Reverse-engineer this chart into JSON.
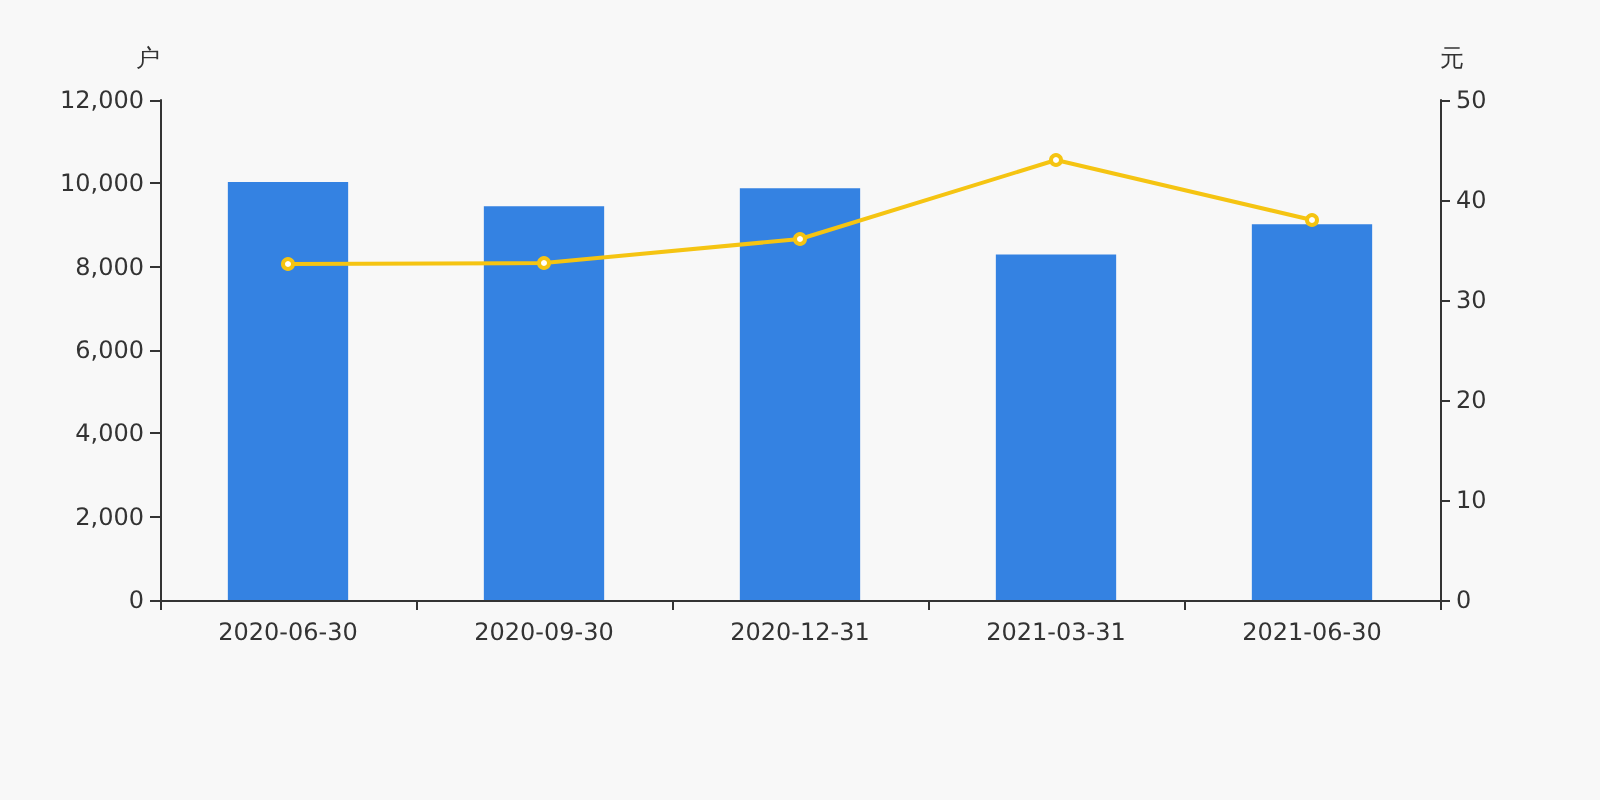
{
  "chart_data": {
    "type": "bar",
    "ylabel": "户",
    "y2label": "元",
    "categories": [
      "2020-06-30",
      "2020-09-30",
      "2020-12-31",
      "2021-03-31",
      "2021-06-30"
    ],
    "series": [
      {
        "color": "#3482e2",
        "values": [
          10030,
          9450,
          9880,
          8290,
          9020
        ]
      },
      {
        "type": "line",
        "axis": "y2",
        "color": "#f5c412",
        "marker": "circle",
        "values": [
          33.6,
          33.7,
          36.1,
          44.0,
          38.0
        ]
      }
    ],
    "ylim": [
      0,
      12000
    ],
    "yticks": [
      0,
      {
        "value": 2000,
        "label": "2,000"
      },
      {
        "value": 4000,
        "label": "4,000"
      },
      {
        "value": 6000,
        "label": "6,000"
      },
      {
        "value": 8000,
        "label": "8,000"
      },
      {
        "value": 10000,
        "label": "10,000"
      },
      {
        "value": 12000,
        "label": "12,000"
      }
    ],
    "y2lim": [
      0,
      50
    ],
    "y2ticks": [
      0,
      10,
      20,
      30,
      40,
      50
    ],
    "grid": false
  }
}
